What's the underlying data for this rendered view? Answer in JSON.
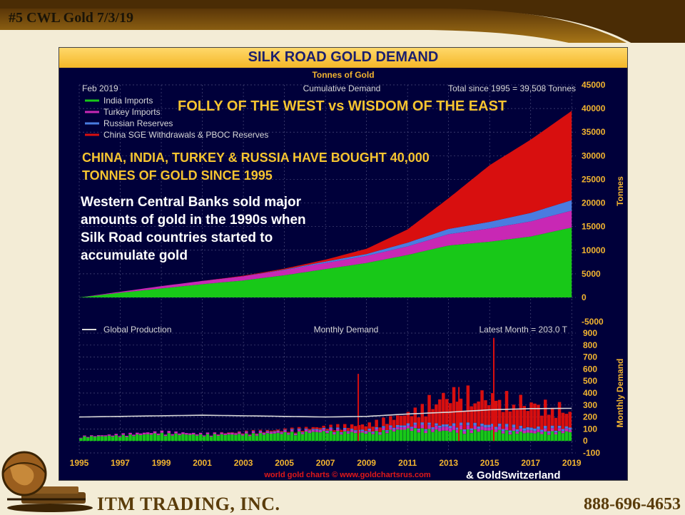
{
  "slide": {
    "title": "#5 CWL Gold 7/3/19",
    "footer_left": "ITM TRADING, INC.",
    "footer_right": "888-696-4653"
  },
  "colors": {
    "india": "#18c818",
    "turkey": "#c828b4",
    "russia": "#4a7ce0",
    "china": "#d80f0f",
    "production": "#d8d8d8",
    "panel_bg": "#00003a",
    "header_gold": "#f4b728"
  },
  "chart_data": [
    {
      "type": "area",
      "title": "SILK ROAD GOLD DEMAND",
      "subtitle": "Tonnes of Gold",
      "top_left_note": "Feb 2019",
      "center_note": "Cumulative Demand",
      "top_right_note": "Total since 1995 = 39,508 Tonnes",
      "ylabel": "Tonnes",
      "stacked": true,
      "ylim": [
        0,
        45000
      ],
      "y_ticks": [
        "45000",
        "40000",
        "35000",
        "30000",
        "25000",
        "20000",
        "15000",
        "10000",
        "5000",
        "0"
      ],
      "headline": "FOLLY OF THE WEST vs WISDOM OF THE EAST",
      "claim_lines": [
        "CHINA, INDIA, TURKEY & RUSSIA HAVE BOUGHT 40,000",
        "TONNES OF GOLD SINCE 1995"
      ],
      "annotation_lines": [
        "Western Central Banks sold major",
        "amounts of gold in the 1990s when",
        "Silk Road countries started to",
        "accumulate gold"
      ],
      "legend_position": "top-left",
      "x": [
        1995,
        1997,
        1999,
        2001,
        2003,
        2005,
        2007,
        2009,
        2011,
        2013,
        2015,
        2017,
        2019
      ],
      "series": [
        {
          "name": "India Imports",
          "values": [
            0,
            1000,
            1900,
            2800,
            3600,
            4700,
            6000,
            7300,
            9000,
            11000,
            11800,
            12900,
            14800
          ]
        },
        {
          "name": "Turkey Imports",
          "values": [
            0,
            200,
            500,
            700,
            900,
            1100,
            1300,
            1500,
            1800,
            2400,
            2800,
            3200,
            3600
          ]
        },
        {
          "name": "Russian Reserves",
          "values": [
            0,
            0,
            0,
            0,
            0,
            100,
            300,
            400,
            800,
            1100,
            1400,
            1800,
            2200
          ]
        },
        {
          "name": "China SGE Withdrawals & PBOC Reserves",
          "values": [
            0,
            0,
            0,
            0,
            100,
            200,
            400,
            1100,
            2800,
            6500,
            12000,
            15500,
            18900
          ]
        }
      ]
    },
    {
      "type": "bar",
      "center_note": "Monthly Demand",
      "top_right_note": "Latest Month = 203.0 T",
      "ylabel": "Monthly Demand",
      "stacked": true,
      "ylim": [
        -100,
        900
      ],
      "y_ticks": [
        "900",
        "800",
        "700",
        "600",
        "500",
        "400",
        "300",
        "200",
        "100",
        "0",
        "-100"
      ],
      "x_ticks": [
        "1995",
        "1997",
        "1999",
        "2001",
        "2003",
        "2005",
        "2007",
        "2009",
        "2011",
        "2013",
        "2015",
        "2017",
        "2019"
      ],
      "legend": [
        "Global Production"
      ],
      "x": [
        1995,
        1997,
        1999,
        2001,
        2003,
        2005,
        2007,
        2009,
        2011,
        2013,
        2015,
        2017,
        2019
      ],
      "series": [
        {
          "name": "India Imports",
          "values": [
            30,
            40,
            55,
            45,
            50,
            60,
            70,
            60,
            90,
            75,
            80,
            60,
            70
          ]
        },
        {
          "name": "Turkey Imports",
          "values": [
            5,
            10,
            15,
            10,
            12,
            12,
            15,
            12,
            20,
            30,
            25,
            20,
            20
          ]
        },
        {
          "name": "Russian Reserves",
          "values": [
            0,
            0,
            0,
            0,
            2,
            5,
            8,
            10,
            15,
            18,
            20,
            20,
            15
          ]
        },
        {
          "name": "China SGE Withdrawals & PBOC Reserves",
          "values": [
            0,
            0,
            0,
            0,
            5,
            8,
            15,
            40,
            80,
            200,
            180,
            160,
            110
          ]
        },
        {
          "name": "Global Production",
          "type": "line",
          "values": [
            200,
            205,
            210,
            215,
            210,
            205,
            200,
            205,
            225,
            240,
            260,
            270,
            272
          ]
        }
      ],
      "peaks": [
        {
          "x": 2008.6,
          "value": 560
        },
        {
          "x": 2015.2,
          "value": 860
        },
        {
          "x": 2013.5,
          "value": 450
        }
      ]
    }
  ],
  "watermark": {
    "line1": "world gold charts © www.goldchartsrus.com",
    "line2": "& GoldSwitzerland"
  }
}
